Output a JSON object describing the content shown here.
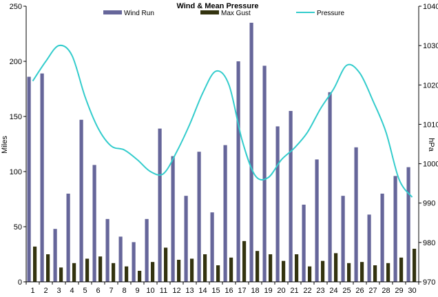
{
  "chart_data": {
    "type": "bar",
    "title": "Wind & Mean Pressure",
    "ylabel_left": "Miles",
    "ylabel_right": "hPa",
    "ylim_left": [
      0,
      250
    ],
    "ylim_right": [
      970,
      1040
    ],
    "yticks_left": [
      0,
      50,
      100,
      150,
      200,
      250
    ],
    "yticks_right": [
      970,
      980,
      990,
      1000,
      1010,
      1020,
      1030,
      1040
    ],
    "categories": [
      "1",
      "2",
      "3",
      "4",
      "5",
      "6",
      "7",
      "8",
      "9",
      "10",
      "11",
      "12",
      "13",
      "14",
      "15",
      "16",
      "17",
      "18",
      "19",
      "20",
      "21",
      "22",
      "23",
      "24",
      "25",
      "26",
      "27",
      "28",
      "29",
      "30"
    ],
    "legend_position": "top",
    "grid": false,
    "series": [
      {
        "name": "Wind Run",
        "kind": "bar",
        "axis": "left",
        "color": "#66669a",
        "values": [
          186,
          189,
          48,
          80,
          147,
          106,
          57,
          41,
          36,
          57,
          139,
          114,
          78,
          118,
          63,
          124,
          200,
          235,
          196,
          141,
          155,
          70,
          111,
          172,
          78,
          122,
          61,
          80,
          96,
          104
        ]
      },
      {
        "name": "Max Gust",
        "kind": "bar",
        "axis": "left",
        "color": "#33330f",
        "values": [
          32,
          25,
          13,
          17,
          21,
          23,
          17,
          14,
          10,
          18,
          31,
          20,
          21,
          25,
          15,
          22,
          37,
          28,
          25,
          19,
          25,
          14,
          19,
          26,
          17,
          18,
          15,
          17,
          22,
          30
        ]
      },
      {
        "name": "Pressure",
        "kind": "line",
        "axis": "right",
        "color": "#33cccc",
        "values": [
          1021,
          1026,
          1030,
          1027.5,
          1017,
          1009,
          1004.5,
          1003.5,
          1001,
          998,
          997.5,
          1003,
          1010,
          1018,
          1023.5,
          1020,
          1006,
          997,
          996.5,
          1001,
          1004,
          1008,
          1014,
          1019,
          1025,
          1023,
          1016,
          1008,
          996,
          991.5
        ]
      }
    ]
  }
}
